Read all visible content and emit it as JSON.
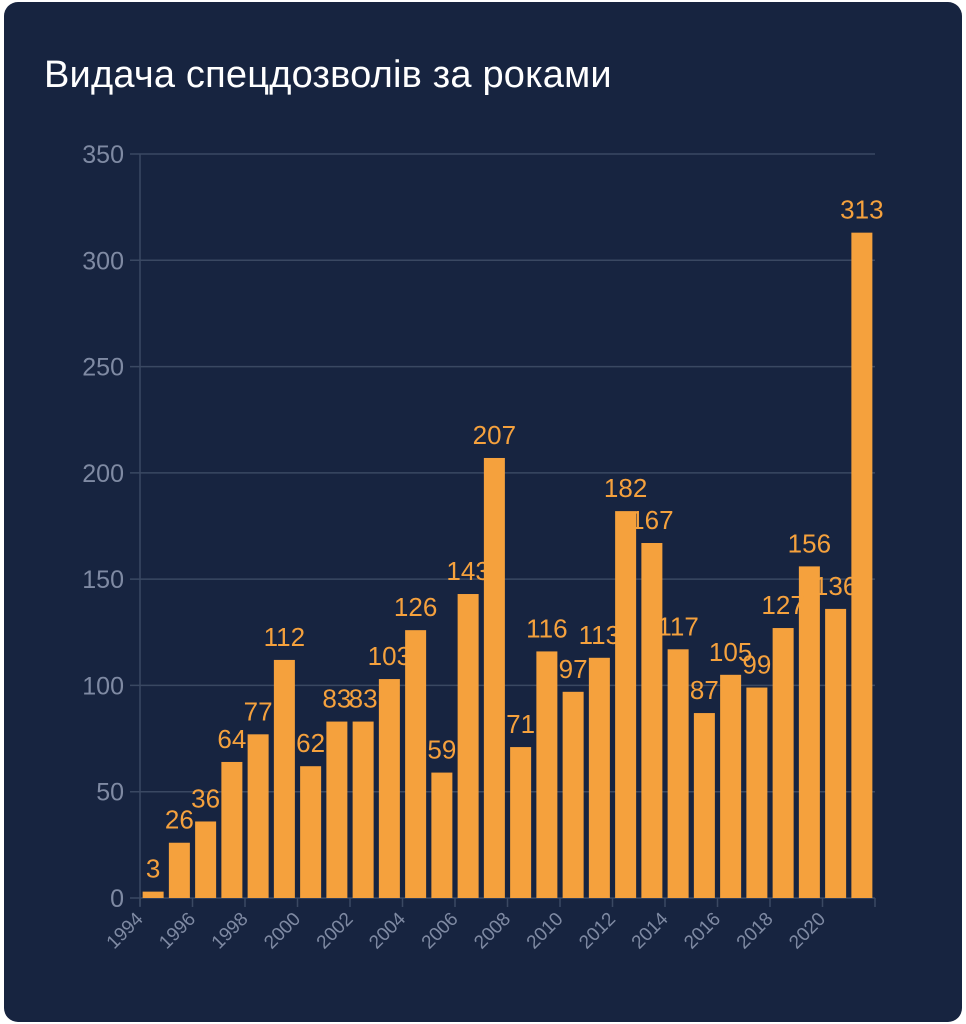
{
  "chart_data": {
    "type": "bar",
    "title": "Видача спецдозволів за роками",
    "xlabel": "",
    "ylabel": "",
    "ylim": [
      0,
      350
    ],
    "y_ticks": [
      0,
      50,
      100,
      150,
      200,
      250,
      300,
      350
    ],
    "x_tick_labels": [
      "1994",
      "1996",
      "1998",
      "2000",
      "2002",
      "2004",
      "2006",
      "2008",
      "2010",
      "2012",
      "2014",
      "2016",
      "2018",
      "2020"
    ],
    "categories": [
      "1994",
      "1995",
      "1996",
      "1997",
      "1998",
      "1999",
      "2000",
      "2001",
      "2002",
      "2003",
      "2004",
      "2005",
      "2006",
      "2007",
      "2008",
      "2009",
      "2010",
      "2011",
      "2012",
      "2013",
      "2014",
      "2015",
      "2016",
      "2017",
      "2018",
      "2019",
      "2020",
      "2021"
    ],
    "values": [
      3,
      26,
      36,
      64,
      77,
      112,
      62,
      83,
      83,
      103,
      126,
      59,
      143,
      207,
      71,
      116,
      97,
      113,
      182,
      167,
      117,
      87,
      105,
      99,
      127,
      156,
      136,
      313
    ],
    "grid": true,
    "legend": "none",
    "colors": {
      "bar": "#f5a13d",
      "label": "#f5a13d",
      "background": "#172440",
      "grid": "#3a4862",
      "axis_text": "#7f8aa3",
      "title": "#ffffff"
    }
  }
}
